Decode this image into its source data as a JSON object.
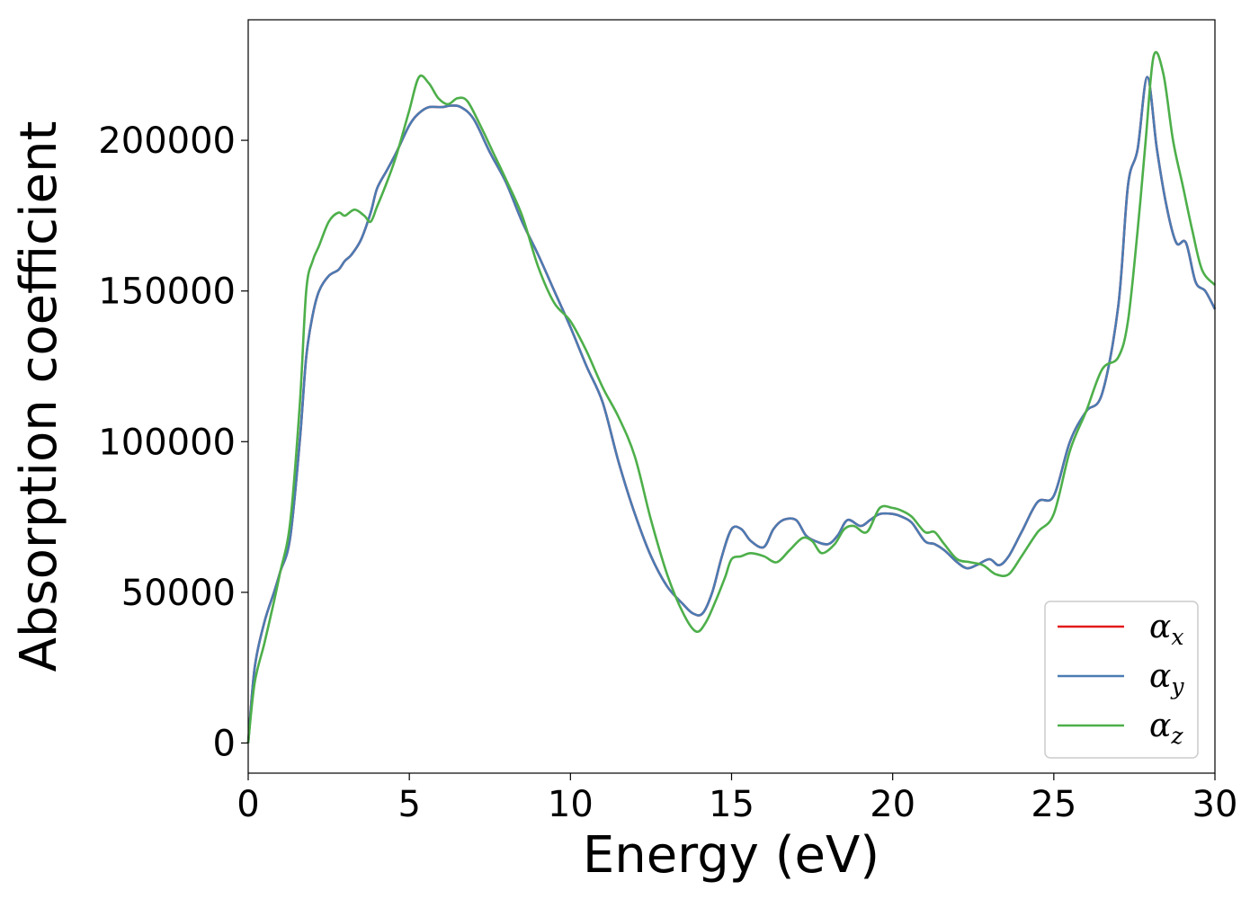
{
  "chart_data": {
    "type": "line",
    "xlabel": "Energy (eV)",
    "ylabel": "Absorption coefficient",
    "xlim": [
      0,
      30
    ],
    "ylim": [
      -10000,
      240000
    ],
    "xticks": [
      0,
      5,
      10,
      15,
      20,
      25,
      30
    ],
    "yticks": [
      0,
      50000,
      100000,
      150000,
      200000
    ],
    "grid": false,
    "legend_position": "lower-right",
    "series": [
      {
        "name": "αx",
        "symbol": "α",
        "sub": "x",
        "color": "#e41a1c",
        "x": [
          0,
          0.2,
          0.5,
          0.8,
          1.0,
          1.3,
          1.6,
          1.8,
          2.0,
          2.2,
          2.5,
          2.8,
          3.0,
          3.2,
          3.5,
          3.8,
          4.0,
          4.3,
          4.6,
          5.0,
          5.3,
          5.6,
          6.0,
          6.3,
          6.6,
          7.0,
          7.5,
          8.0,
          8.5,
          9.0,
          9.5,
          10.0,
          10.5,
          11.0,
          11.5,
          12.0,
          12.5,
          13.0,
          13.5,
          13.8,
          14.1,
          14.4,
          14.7,
          15.0,
          15.3,
          15.6,
          16.0,
          16.3,
          16.6,
          17.0,
          17.3,
          17.6,
          18.0,
          18.3,
          18.6,
          19.0,
          19.3,
          19.6,
          20.0,
          20.3,
          20.6,
          21.0,
          21.3,
          21.6,
          22.0,
          22.3,
          22.6,
          23.0,
          23.3,
          23.6,
          24.0,
          24.5,
          25.0,
          25.5,
          26.0,
          26.5,
          27.0,
          27.3,
          27.6,
          27.9,
          28.2,
          28.5,
          28.8,
          29.1,
          29.4,
          29.7,
          30.0
        ],
        "y": [
          0,
          25000,
          40000,
          50000,
          57000,
          68000,
          100000,
          128000,
          142000,
          150000,
          155000,
          157000,
          160000,
          162000,
          167000,
          176000,
          184000,
          190000,
          196000,
          205000,
          209000,
          211000,
          211000,
          211500,
          211000,
          207000,
          196000,
          186000,
          173000,
          162000,
          150000,
          138000,
          125000,
          113000,
          93000,
          76000,
          62000,
          52000,
          46000,
          43000,
          43000,
          50000,
          62000,
          71000,
          71000,
          67000,
          65000,
          71000,
          74000,
          74000,
          69000,
          67000,
          66000,
          69000,
          74000,
          72000,
          74000,
          76000,
          76000,
          75000,
          73000,
          67000,
          66000,
          64000,
          60000,
          58000,
          59000,
          61000,
          59000,
          62000,
          70000,
          80000,
          82000,
          100000,
          110000,
          116000,
          145000,
          185000,
          197000,
          221000,
          197000,
          178000,
          166000,
          166000,
          153000,
          150000,
          144000
        ]
      },
      {
        "name": "αy",
        "symbol": "α",
        "sub": "y",
        "color": "#4b7bb3",
        "x": [
          0,
          0.2,
          0.5,
          0.8,
          1.0,
          1.3,
          1.6,
          1.8,
          2.0,
          2.2,
          2.5,
          2.8,
          3.0,
          3.2,
          3.5,
          3.8,
          4.0,
          4.3,
          4.6,
          5.0,
          5.3,
          5.6,
          6.0,
          6.3,
          6.6,
          7.0,
          7.5,
          8.0,
          8.5,
          9.0,
          9.5,
          10.0,
          10.5,
          11.0,
          11.5,
          12.0,
          12.5,
          13.0,
          13.5,
          13.8,
          14.1,
          14.4,
          14.7,
          15.0,
          15.3,
          15.6,
          16.0,
          16.3,
          16.6,
          17.0,
          17.3,
          17.6,
          18.0,
          18.3,
          18.6,
          19.0,
          19.3,
          19.6,
          20.0,
          20.3,
          20.6,
          21.0,
          21.3,
          21.6,
          22.0,
          22.3,
          22.6,
          23.0,
          23.3,
          23.6,
          24.0,
          24.5,
          25.0,
          25.5,
          26.0,
          26.5,
          27.0,
          27.3,
          27.6,
          27.9,
          28.2,
          28.5,
          28.8,
          29.1,
          29.4,
          29.7,
          30.0
        ],
        "y": [
          0,
          25000,
          40000,
          50000,
          57000,
          68000,
          100000,
          128000,
          142000,
          150000,
          155000,
          157000,
          160000,
          162000,
          167000,
          176000,
          184000,
          190000,
          196000,
          205000,
          209000,
          211000,
          211000,
          211500,
          211000,
          207000,
          196000,
          186000,
          173000,
          162000,
          150000,
          138000,
          125000,
          113000,
          93000,
          76000,
          62000,
          52000,
          46000,
          43000,
          43000,
          50000,
          62000,
          71000,
          71000,
          67000,
          65000,
          71000,
          74000,
          74000,
          69000,
          67000,
          66000,
          69000,
          74000,
          72000,
          74000,
          76000,
          76000,
          75000,
          73000,
          67000,
          66000,
          64000,
          60000,
          58000,
          59000,
          61000,
          59000,
          62000,
          70000,
          80000,
          82000,
          100000,
          110000,
          116000,
          145000,
          185000,
          197000,
          221000,
          197000,
          178000,
          166000,
          166000,
          153000,
          150000,
          144000
        ]
      },
      {
        "name": "αz",
        "symbol": "α",
        "sub": "z",
        "color": "#4daf4a",
        "x": [
          0,
          0.2,
          0.5,
          0.8,
          1.0,
          1.3,
          1.6,
          1.8,
          2.0,
          2.2,
          2.5,
          2.8,
          3.0,
          3.3,
          3.6,
          3.8,
          4.0,
          4.3,
          4.6,
          5.0,
          5.3,
          5.6,
          5.9,
          6.2,
          6.5,
          6.8,
          7.2,
          7.6,
          8.0,
          8.5,
          9.0,
          9.5,
          10.0,
          10.5,
          11.0,
          11.5,
          12.0,
          12.5,
          13.0,
          13.5,
          13.9,
          14.2,
          14.5,
          14.8,
          15.0,
          15.3,
          15.6,
          16.0,
          16.4,
          16.8,
          17.2,
          17.5,
          17.8,
          18.2,
          18.5,
          18.8,
          19.2,
          19.6,
          20.0,
          20.3,
          20.6,
          21.0,
          21.3,
          21.6,
          22.0,
          22.4,
          22.8,
          23.2,
          23.6,
          24.0,
          24.5,
          25.0,
          25.5,
          26.0,
          26.5,
          27.0,
          27.3,
          27.6,
          27.85,
          28.1,
          28.4,
          28.7,
          29.0,
          29.3,
          29.6,
          30.0
        ],
        "y": [
          0,
          20000,
          33000,
          47000,
          57000,
          73000,
          112000,
          150000,
          160000,
          165000,
          173000,
          176000,
          175000,
          177000,
          175000,
          173000,
          178000,
          186000,
          195000,
          210000,
          221000,
          219000,
          214000,
          212000,
          214000,
          213000,
          205000,
          196000,
          187000,
          175000,
          158000,
          146000,
          140000,
          130000,
          118000,
          108000,
          95000,
          74000,
          56000,
          43000,
          37000,
          40000,
          47000,
          55000,
          61000,
          62000,
          63000,
          62000,
          60000,
          64000,
          68000,
          67000,
          63000,
          66000,
          71000,
          72000,
          70000,
          78000,
          78000,
          77000,
          75000,
          70000,
          70000,
          66000,
          61000,
          60000,
          59000,
          56000,
          56000,
          62000,
          70000,
          76000,
          97000,
          110000,
          124000,
          128000,
          140000,
          170000,
          200000,
          228000,
          222000,
          200000,
          185000,
          170000,
          157000,
          152000
        ]
      }
    ]
  }
}
